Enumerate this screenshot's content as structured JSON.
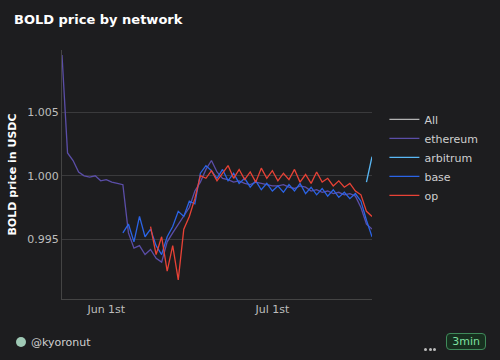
{
  "chart_data": {
    "type": "line",
    "title": "BOLD price by network",
    "y_label": "BOLD price in USDC",
    "categories": [
      null,
      null,
      null,
      null,
      null,
      null,
      null,
      null,
      "Jun 1st",
      null,
      null,
      null,
      null,
      null,
      null,
      null,
      null,
      null,
      null,
      null,
      null,
      null,
      null,
      null,
      null,
      null,
      null,
      null,
      null,
      null,
      null,
      null,
      null,
      null,
      null,
      null,
      null,
      null,
      "Jul 1st",
      null,
      null,
      null,
      null,
      null,
      null,
      null,
      null,
      null,
      null,
      null,
      null,
      null,
      null,
      null,
      null,
      null,
      null
    ],
    "ylim": [
      0.9903,
      1.0099
    ],
    "yticks": [
      0.995,
      {
        "value": 1,
        "label": "1.000"
      },
      1.005
    ],
    "grid": true,
    "legend": "right",
    "series": [
      {
        "name": "All",
        "color": "#b3b3b3",
        "values": [
          null,
          null,
          null,
          null,
          null,
          null,
          null,
          null,
          null,
          null,
          null,
          null,
          null,
          null,
          null,
          null,
          null,
          null,
          null,
          null,
          null,
          null,
          null,
          null,
          null,
          null,
          null,
          null,
          null,
          null,
          null,
          null,
          null,
          null,
          null,
          null,
          null,
          null,
          null,
          null,
          null,
          null,
          null,
          null,
          null,
          null,
          null,
          null,
          null,
          null,
          null,
          null,
          null,
          null,
          null,
          null,
          null
        ]
      },
      {
        "name": "ethereum",
        "color": "#5b4ea8",
        "values": [
          1.0095,
          1.0018,
          1.0012,
          1.0003,
          1.0,
          0.9999,
          1.0,
          0.9996,
          0.9997,
          0.9995,
          0.9994,
          0.9993,
          0.9955,
          0.9943,
          0.9945,
          0.9938,
          0.9942,
          0.9935,
          0.9932,
          0.9948,
          0.9955,
          0.9962,
          0.9968,
          0.9975,
          0.9988,
          0.9995,
          1.0005,
          1.0012,
          1.0003,
          0.9998,
          0.9997,
          0.9995,
          0.9996,
          0.9994,
          0.9993,
          0.9995,
          0.9994,
          0.9993,
          0.9992,
          0.9992,
          0.9993,
          0.9991,
          0.999,
          0.9992,
          0.9991,
          0.9988,
          0.9989,
          0.9987,
          0.9988,
          0.9986,
          0.9987,
          0.9985,
          0.9986,
          0.9984,
          0.9975,
          0.9962,
          0.9958
        ]
      },
      {
        "name": "arbitrum",
        "color": "#5ab8f5",
        "values": [
          null,
          null,
          null,
          null,
          null,
          null,
          null,
          null,
          null,
          null,
          null,
          null,
          null,
          null,
          null,
          null,
          null,
          null,
          null,
          null,
          null,
          null,
          null,
          null,
          null,
          null,
          null,
          null,
          null,
          null,
          null,
          null,
          null,
          null,
          null,
          null,
          null,
          null,
          null,
          null,
          null,
          null,
          null,
          null,
          null,
          null,
          null,
          null,
          null,
          null,
          null,
          null,
          null,
          null,
          null,
          0.9995,
          1.0015
        ]
      },
      {
        "name": "base",
        "color": "#2b64e6",
        "values": [
          null,
          null,
          null,
          null,
          null,
          null,
          null,
          null,
          null,
          null,
          null,
          0.9955,
          0.9962,
          0.9948,
          0.9968,
          0.9952,
          0.9958,
          0.9945,
          0.9938,
          0.9952,
          0.996,
          0.9972,
          0.9968,
          0.998,
          0.9978,
          1.0002,
          1.0008,
          1.0004,
          0.9998,
          1.0005,
          0.9996,
          1.0002,
          0.9994,
          0.9998,
          0.9991,
          0.9996,
          0.9989,
          0.9994,
          0.9988,
          0.9992,
          0.9987,
          0.9993,
          0.9988,
          0.9994,
          0.9986,
          0.9991,
          0.9985,
          0.999,
          0.9984,
          0.9989,
          0.9983,
          0.9987,
          0.9982,
          0.9986,
          0.998,
          0.9965,
          0.9952
        ]
      },
      {
        "name": "op",
        "color": "#e84236",
        "values": [
          null,
          null,
          null,
          null,
          null,
          null,
          null,
          null,
          null,
          null,
          null,
          null,
          null,
          null,
          null,
          null,
          0.996,
          0.9938,
          0.9952,
          0.9925,
          0.9945,
          0.9918,
          0.9958,
          0.9968,
          0.9982,
          1.0,
          0.9998,
          1.0004,
          0.9996,
          1.0002,
          1.0008,
          0.9998,
          1.0005,
          0.9997,
          1.0003,
          0.9995,
          1.0006,
          0.9998,
          1.0004,
          0.9996,
          1.0002,
          0.9997,
          1.0005,
          0.9995,
          1.0001,
          0.9994,
          1.0003,
          0.9995,
          0.9998,
          0.9992,
          0.9996,
          0.9991,
          0.9994,
          0.9988,
          0.9985,
          0.9972,
          0.9968
        ]
      }
    ]
  },
  "footer": {
    "author": "@kyoronut",
    "refresh": "3min"
  }
}
